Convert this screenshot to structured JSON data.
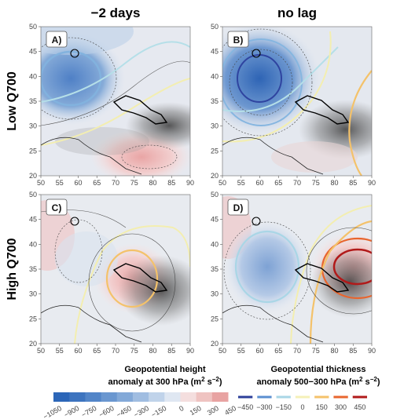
{
  "chart_data": {
    "type": "heatmap",
    "column_titles": [
      "−2 days",
      "no lag"
    ],
    "row_titles": [
      "Low Q700",
      "High Q700"
    ],
    "panels": [
      {
        "label": "A)",
        "lag": "−2 days",
        "case": "Low Q700"
      },
      {
        "label": "B)",
        "lag": "no lag",
        "case": "Low Q700"
      },
      {
        "label": "C)",
        "lag": "−2 days",
        "case": "High Q700"
      },
      {
        "label": "D)",
        "lag": "no lag",
        "case": "High Q700"
      }
    ],
    "x_ticks": [
      50,
      55,
      60,
      65,
      70,
      75,
      80,
      85,
      90
    ],
    "y_ticks": [
      20,
      25,
      30,
      35,
      40,
      45,
      50
    ],
    "xlim": [
      50,
      90
    ],
    "ylim": [
      20,
      50
    ],
    "colorbar_fill": {
      "title_line1": "Geopotential height",
      "title_line2": "anomaly at 300 hPa (m",
      "unit_sup": "2",
      "unit_mid": " s",
      "unit_sup2": "−2",
      "unit_end": ")",
      "ticks": [
        "−1050",
        "−900",
        "−750",
        "−600",
        "−450",
        "−300",
        "−150",
        "0",
        "150",
        "300",
        "450"
      ],
      "colors": [
        "#2c66b8",
        "#3d74bf",
        "#5285c8",
        "#6a97d0",
        "#83a9d8",
        "#a0bde1",
        "#c0d3ea",
        "#dfe7f2",
        "#f4dede",
        "#efc3c1",
        "#e8a3a2"
      ]
    },
    "colorbar_lines": {
      "title_line1": "Geopotential thickness",
      "title_line2": "anomaly 500−300 hPa (m",
      "unit_sup": "2",
      "unit_mid": " s",
      "unit_sup2": "−2",
      "unit_end": ")",
      "ticks": [
        "−450",
        "−300",
        "−150",
        "0",
        "150",
        "300",
        "450"
      ],
      "colors": [
        "#2c3f9a",
        "#5b8fd0",
        "#a9d6e6",
        "#f5f0b8",
        "#f4c26a",
        "#e8652e",
        "#b11a1a"
      ]
    }
  }
}
